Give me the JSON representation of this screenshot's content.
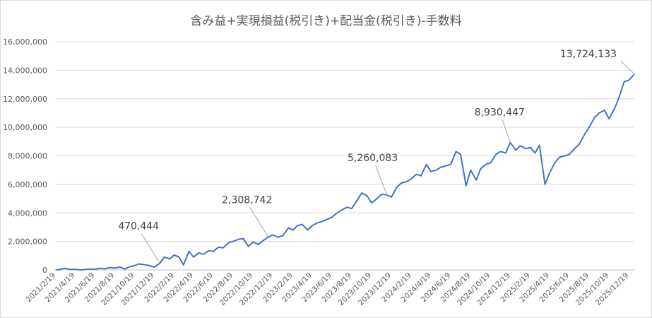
{
  "chart_data": {
    "type": "line",
    "title": "含み益+実現損益(税引き)+配当金(税引き)-手数料",
    "xlabel": "",
    "ylabel": "",
    "ylim": [
      0,
      16000000
    ],
    "y_ticks": [
      "0",
      "2,000,000",
      "4,000,000",
      "6,000,000",
      "8,000,000",
      "10,000,000",
      "12,000,000",
      "14,000,000",
      "16,000,000"
    ],
    "x_ticks": [
      "2021/2/19",
      "2021/4/19",
      "2021/6/19",
      "2021/8/19",
      "2021/10/19",
      "2021/12/19",
      "2022/2/19",
      "2022/4/19",
      "2022/6/19",
      "2022/8/19",
      "2022/10/19",
      "2022/12/19",
      "2023/2/19",
      "2023/4/19",
      "2023/6/19",
      "2023/8/19",
      "2023/10/19",
      "2023/12/19",
      "2024/2/19",
      "2024/4/19",
      "2024/6/19",
      "2024/8/19",
      "2024/10/19",
      "2024/12/19",
      "2025/2/19",
      "2025/4/19",
      "2025/6/19",
      "2025/8/19",
      "2025/10/19",
      "2025/12/19"
    ],
    "grid": true,
    "series": [
      {
        "color": "#4472c4",
        "points": [
          [
            "2021-02-19",
            0
          ],
          [
            "2021-03-05",
            40000
          ],
          [
            "2021-03-19",
            120000
          ],
          [
            "2021-04-05",
            30000
          ],
          [
            "2021-04-19",
            50000
          ],
          [
            "2021-05-05",
            0
          ],
          [
            "2021-05-19",
            30000
          ],
          [
            "2021-06-05",
            60000
          ],
          [
            "2021-06-19",
            50000
          ],
          [
            "2021-07-05",
            120000
          ],
          [
            "2021-07-19",
            80000
          ],
          [
            "2021-08-05",
            170000
          ],
          [
            "2021-08-19",
            130000
          ],
          [
            "2021-09-05",
            200000
          ],
          [
            "2021-09-19",
            60000
          ],
          [
            "2021-10-01",
            200000
          ],
          [
            "2021-10-19",
            300000
          ],
          [
            "2021-11-01",
            420000
          ],
          [
            "2021-11-15",
            380000
          ],
          [
            "2021-12-01",
            320000
          ],
          [
            "2021-12-19",
            200000
          ],
          [
            "2022-01-05",
            470444
          ],
          [
            "2022-01-19",
            900000
          ],
          [
            "2022-02-05",
            780000
          ],
          [
            "2022-02-19",
            1050000
          ],
          [
            "2022-03-05",
            900000
          ],
          [
            "2022-03-19",
            350000
          ],
          [
            "2022-04-05",
            1300000
          ],
          [
            "2022-04-19",
            900000
          ],
          [
            "2022-05-05",
            1200000
          ],
          [
            "2022-05-19",
            1100000
          ],
          [
            "2022-06-05",
            1350000
          ],
          [
            "2022-06-19",
            1300000
          ],
          [
            "2022-07-05",
            1600000
          ],
          [
            "2022-07-19",
            1550000
          ],
          [
            "2022-08-05",
            1900000
          ],
          [
            "2022-08-19",
            2000000
          ],
          [
            "2022-09-05",
            2150000
          ],
          [
            "2022-09-19",
            2200000
          ],
          [
            "2022-10-05",
            1650000
          ],
          [
            "2022-10-19",
            1950000
          ],
          [
            "2022-11-05",
            1800000
          ],
          [
            "2022-11-19",
            2050000
          ],
          [
            "2022-12-05",
            2308742
          ],
          [
            "2022-12-19",
            2450000
          ],
          [
            "2023-01-05",
            2300000
          ],
          [
            "2023-01-19",
            2400000
          ],
          [
            "2023-02-05",
            2950000
          ],
          [
            "2023-02-19",
            2800000
          ],
          [
            "2023-03-05",
            3100000
          ],
          [
            "2023-03-19",
            3200000
          ],
          [
            "2023-04-05",
            2800000
          ],
          [
            "2023-04-19",
            3100000
          ],
          [
            "2023-05-05",
            3300000
          ],
          [
            "2023-05-19",
            3400000
          ],
          [
            "2023-06-05",
            3550000
          ],
          [
            "2023-06-19",
            3700000
          ],
          [
            "2023-07-05",
            4000000
          ],
          [
            "2023-07-19",
            4200000
          ],
          [
            "2023-08-05",
            4400000
          ],
          [
            "2023-08-19",
            4300000
          ],
          [
            "2023-09-05",
            4900000
          ],
          [
            "2023-09-19",
            5400000
          ],
          [
            "2023-10-05",
            5200000
          ],
          [
            "2023-10-19",
            4700000
          ],
          [
            "2023-11-05",
            5000000
          ],
          [
            "2023-11-19",
            5300000
          ],
          [
            "2023-12-05",
            5260083
          ],
          [
            "2023-12-19",
            5100000
          ],
          [
            "2024-01-05",
            5800000
          ],
          [
            "2024-01-19",
            6100000
          ],
          [
            "2024-02-05",
            6200000
          ],
          [
            "2024-02-19",
            6400000
          ],
          [
            "2024-03-05",
            6700000
          ],
          [
            "2024-03-19",
            6600000
          ],
          [
            "2024-04-05",
            7400000
          ],
          [
            "2024-04-19",
            6900000
          ],
          [
            "2024-05-05",
            7000000
          ],
          [
            "2024-05-19",
            7200000
          ],
          [
            "2024-06-05",
            7300000
          ],
          [
            "2024-06-19",
            7400000
          ],
          [
            "2024-07-05",
            8300000
          ],
          [
            "2024-07-19",
            8100000
          ],
          [
            "2024-08-05",
            5900000
          ],
          [
            "2024-08-19",
            7000000
          ],
          [
            "2024-09-05",
            6300000
          ],
          [
            "2024-09-19",
            7100000
          ],
          [
            "2024-10-05",
            7400000
          ],
          [
            "2024-10-19",
            7500000
          ],
          [
            "2024-11-05",
            8100000
          ],
          [
            "2024-11-19",
            8300000
          ],
          [
            "2024-12-05",
            8200000
          ],
          [
            "2024-12-19",
            8930447
          ],
          [
            "2025-01-05",
            8400000
          ],
          [
            "2025-01-19",
            8700000
          ],
          [
            "2025-02-05",
            8500000
          ],
          [
            "2025-02-19",
            8600000
          ],
          [
            "2025-03-05",
            8200000
          ],
          [
            "2025-03-19",
            8750000
          ],
          [
            "2025-04-05",
            6000000
          ],
          [
            "2025-04-19",
            6800000
          ],
          [
            "2025-05-05",
            7500000
          ],
          [
            "2025-05-19",
            7900000
          ],
          [
            "2025-06-05",
            8000000
          ],
          [
            "2025-06-19",
            8100000
          ],
          [
            "2025-07-05",
            8500000
          ],
          [
            "2025-07-19",
            8800000
          ],
          [
            "2025-08-05",
            9500000
          ],
          [
            "2025-08-19",
            10000000
          ],
          [
            "2025-09-05",
            10700000
          ],
          [
            "2025-09-19",
            11000000
          ],
          [
            "2025-10-05",
            11200000
          ],
          [
            "2025-10-19",
            10600000
          ],
          [
            "2025-11-05",
            11300000
          ],
          [
            "2025-11-19",
            12100000
          ],
          [
            "2025-12-05",
            13200000
          ],
          [
            "2025-12-19",
            13300000
          ],
          [
            "2026-01-05",
            13724133
          ]
        ]
      }
    ],
    "annotations": [
      {
        "date": "2022-01-05",
        "value": 470444,
        "label": "470,444"
      },
      {
        "date": "2022-12-05",
        "value": 2308742,
        "label": "2,308,742"
      },
      {
        "date": "2023-12-05",
        "value": 5260083,
        "label": "5,260,083"
      },
      {
        "date": "2024-12-19",
        "value": 8930447,
        "label": "8,930,447"
      },
      {
        "date": "2026-01-05",
        "value": 13724133,
        "label": "13,724,133"
      }
    ]
  }
}
